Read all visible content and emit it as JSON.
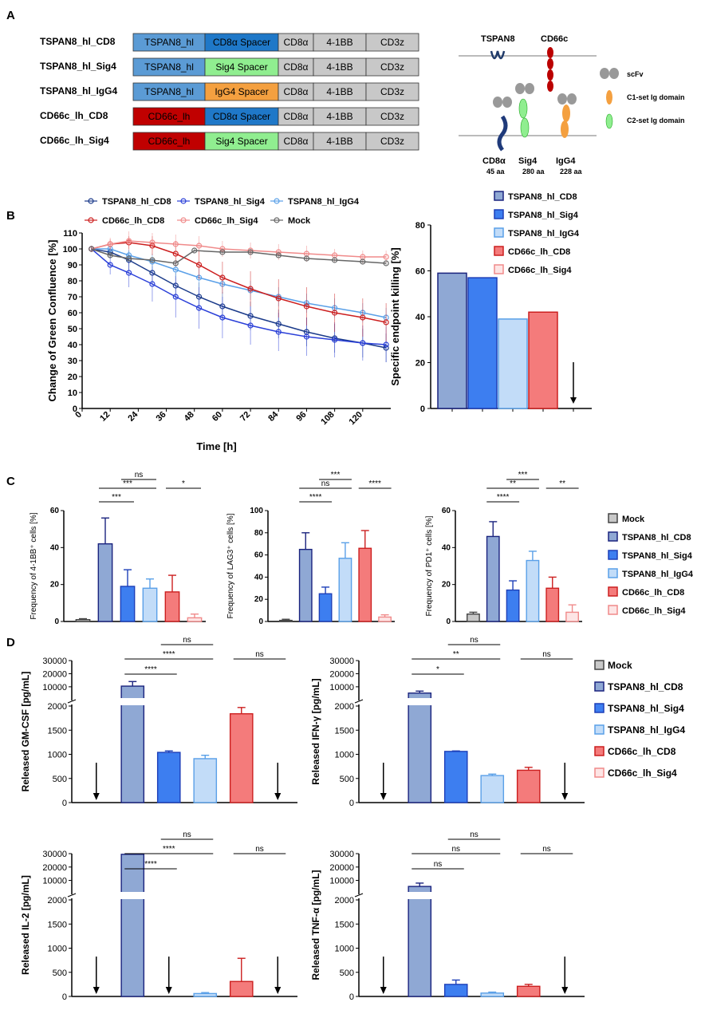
{
  "panels": {
    "A": "A",
    "B": "B",
    "C": "C",
    "D": "D"
  },
  "colors": {
    "mock": "#c8c8c8",
    "tspan8_cd8": "#8fa8d4",
    "tspan8_sig4": "#3d7ef0",
    "tspan8_igg4": "#c2dcf8",
    "cd66c_cd8": "#f47b7b",
    "cd66c_sig4": "#fde5e5",
    "edge_tspan8_cd8": "#1a237e",
    "edge_tspan8_sig4": "#1d3fb8",
    "edge_tspan8_igg4": "#5aa0e8",
    "edge_cd66c_cd8": "#cc1f1f",
    "edge_cd66c_sig4": "#f08a8a",
    "seg_tspan8": "#5b9bd5",
    "seg_cd66c": "#c00000",
    "seg_cd8a_spacer": "#1f78c8",
    "seg_sig4_spacer": "#90ee90",
    "seg_igg4_spacer": "#f4a040",
    "seg_gray": "#c8c8c8"
  },
  "constructs": [
    {
      "name": "TSPAN8_hl_CD8",
      "segments": [
        {
          "label": "TSPAN8_hl",
          "color": "#5b9bd5"
        },
        {
          "label": "CD8α Spacer",
          "color": "#1f78c8"
        },
        {
          "label": "CD8α",
          "color": "#c8c8c8"
        },
        {
          "label": "4-1BB",
          "color": "#c8c8c8"
        },
        {
          "label": "CD3z",
          "color": "#c8c8c8"
        }
      ]
    },
    {
      "name": "TSPAN8_hl_Sig4",
      "segments": [
        {
          "label": "TSPAN8_hl",
          "color": "#5b9bd5"
        },
        {
          "label": "Sig4 Spacer",
          "color": "#90ee90"
        },
        {
          "label": "CD8α",
          "color": "#c8c8c8"
        },
        {
          "label": "4-1BB",
          "color": "#c8c8c8"
        },
        {
          "label": "CD3z",
          "color": "#c8c8c8"
        }
      ]
    },
    {
      "name": "TSPAN8_hl_IgG4",
      "segments": [
        {
          "label": "TSPAN8_hl",
          "color": "#5b9bd5"
        },
        {
          "label": "IgG4 Spacer",
          "color": "#f4a040"
        },
        {
          "label": "CD8α",
          "color": "#c8c8c8"
        },
        {
          "label": "4-1BB",
          "color": "#c8c8c8"
        },
        {
          "label": "CD3z",
          "color": "#c8c8c8"
        }
      ]
    },
    {
      "name": "CD66c_lh_CD8",
      "segments": [
        {
          "label": "CD66c_lh",
          "color": "#c00000"
        },
        {
          "label": "CD8α Spacer",
          "color": "#1f78c8"
        },
        {
          "label": "CD8α",
          "color": "#c8c8c8"
        },
        {
          "label": "4-1BB",
          "color": "#c8c8c8"
        },
        {
          "label": "CD3z",
          "color": "#c8c8c8"
        }
      ]
    },
    {
      "name": "CD66c_lh_Sig4",
      "segments": [
        {
          "label": "CD66c_lh",
          "color": "#c00000"
        },
        {
          "label": "Sig4 Spacer",
          "color": "#90ee90"
        },
        {
          "label": "CD8α",
          "color": "#c8c8c8"
        },
        {
          "label": "4-1BB",
          "color": "#c8c8c8"
        },
        {
          "label": "CD3z",
          "color": "#c8c8c8"
        }
      ]
    }
  ],
  "schematic": {
    "tspan8": "TSPAN8",
    "cd66c": "CD66c",
    "legend": [
      "scFv",
      "C1-set Ig domain",
      "C2-set Ig domain"
    ],
    "spacers": [
      {
        "name": "CD8α",
        "len": "45 aa"
      },
      {
        "name": "Sig4",
        "len": "280 aa"
      },
      {
        "name": "IgG4",
        "len": "228 aa"
      }
    ]
  },
  "chart_data": [
    {
      "id": "B-time-course",
      "type": "line",
      "xlabel": "Time [h]",
      "ylabel": "Change of Green Confluence [%]",
      "xlim": [
        0,
        132
      ],
      "ylim": [
        0,
        110
      ],
      "xticks": [
        0,
        12,
        24,
        36,
        48,
        60,
        72,
        84,
        96,
        108,
        120
      ],
      "yticks": [
        0,
        10,
        20,
        30,
        40,
        50,
        60,
        70,
        80,
        90,
        100,
        110
      ],
      "legend": [
        "TSPAN8_hl_CD8",
        "TSPAN8_hl_Sig4",
        "TSPAN8_hl_IgG4",
        "CD66c_lh_CD8",
        "CD66c_lh_Sig4",
        "Mock"
      ],
      "series": [
        {
          "name": "TSPAN8_hl_CD8",
          "x": [
            4,
            12,
            20,
            30,
            40,
            50,
            60,
            72,
            84,
            96,
            108,
            120,
            130
          ],
          "y": [
            100,
            98,
            93,
            85,
            77,
            70,
            64,
            58,
            53,
            48,
            44,
            41,
            38
          ],
          "err": [
            2,
            4,
            6,
            7,
            8,
            9,
            9,
            9,
            9,
            9,
            9,
            9,
            9
          ]
        },
        {
          "name": "TSPAN8_hl_Sig4",
          "x": [
            4,
            12,
            20,
            30,
            40,
            50,
            60,
            72,
            84,
            96,
            108,
            120,
            130
          ],
          "y": [
            100,
            90,
            85,
            78,
            70,
            63,
            57,
            52,
            48,
            45,
            43,
            41,
            40
          ],
          "err": [
            2,
            6,
            9,
            11,
            13,
            13,
            13,
            12,
            12,
            12,
            11,
            11,
            11
          ]
        },
        {
          "name": "TSPAN8_hl_IgG4",
          "x": [
            4,
            12,
            20,
            30,
            40,
            50,
            60,
            72,
            84,
            96,
            108,
            120,
            130
          ],
          "y": [
            100,
            100,
            96,
            92,
            87,
            82,
            78,
            74,
            70,
            66,
            63,
            60,
            57
          ],
          "err": [
            2,
            3,
            4,
            5,
            5,
            6,
            6,
            6,
            6,
            6,
            6,
            6,
            6
          ]
        },
        {
          "name": "CD66c_lh_CD8",
          "x": [
            4,
            12,
            20,
            30,
            40,
            50,
            60,
            72,
            84,
            96,
            108,
            120,
            130
          ],
          "y": [
            100,
            103,
            104,
            102,
            97,
            90,
            82,
            75,
            69,
            64,
            60,
            57,
            54
          ],
          "err": [
            2,
            3,
            4,
            6,
            8,
            9,
            10,
            11,
            12,
            12,
            12,
            12,
            12
          ]
        },
        {
          "name": "CD66c_lh_Sig4",
          "x": [
            4,
            12,
            20,
            30,
            40,
            50,
            60,
            72,
            84,
            96,
            108,
            120,
            130
          ],
          "y": [
            100,
            103,
            105,
            104,
            103,
            102,
            100,
            99,
            98,
            97,
            96,
            95,
            95
          ],
          "err": [
            2,
            4,
            6,
            6,
            6,
            6,
            5,
            5,
            5,
            5,
            4,
            4,
            4
          ]
        },
        {
          "name": "Mock",
          "x": [
            4,
            12,
            20,
            30,
            40,
            48,
            60,
            72,
            84,
            96,
            108,
            120,
            130
          ],
          "y": [
            100,
            96,
            94,
            93,
            91,
            99,
            98,
            98,
            96,
            94,
            93,
            92,
            91
          ],
          "err": [
            1,
            1,
            1,
            1,
            1,
            1,
            1,
            1,
            1,
            1,
            1,
            1,
            1
          ]
        }
      ]
    },
    {
      "id": "B-endpoint",
      "type": "bar",
      "ylabel": "Specific endpoint killing [%]",
      "ylim": [
        0,
        80
      ],
      "yticks": [
        0,
        20,
        40,
        60,
        80
      ],
      "categories": [
        "TSPAN8_hl_CD8",
        "TSPAN8_hl_Sig4",
        "TSPAN8_hl_IgG4",
        "CD66c_lh_CD8",
        "CD66c_lh_Sig4"
      ],
      "values": [
        59,
        57,
        39,
        42,
        null
      ],
      "legend": [
        "TSPAN8_hl_CD8",
        "TSPAN8_hl_Sig4",
        "TSPAN8_hl_IgG4",
        "CD66c_lh_CD8",
        "CD66c_lh_Sig4"
      ]
    },
    {
      "id": "C-41BB",
      "type": "bar",
      "ylabel": "Frequency of 4-1BB⁺ cells [%]",
      "ylim": [
        0,
        60
      ],
      "yticks": [
        0,
        20,
        40,
        60
      ],
      "categories": [
        "Mock",
        "TSPAN8_hl_CD8",
        "TSPAN8_hl_Sig4",
        "TSPAN8_hl_IgG4",
        "CD66c_lh_CD8",
        "CD66c_lh_Sig4"
      ],
      "values": [
        1,
        42,
        19,
        18,
        16,
        2
      ],
      "errors": [
        0.5,
        14,
        9,
        5,
        9,
        2
      ],
      "significance": [
        {
          "a": 1,
          "b": 2,
          "label": "***"
        },
        {
          "a": 1,
          "b": 3,
          "label": "***"
        },
        {
          "a": 2,
          "b": 3,
          "label": "ns"
        },
        {
          "a": 4,
          "b": 5,
          "label": "*"
        }
      ]
    },
    {
      "id": "C-LAG3",
      "type": "bar",
      "ylabel": "Frequency of LAG3⁺ cells [%]",
      "ylim": [
        0,
        100
      ],
      "yticks": [
        0,
        20,
        40,
        60,
        80,
        100
      ],
      "categories": [
        "Mock",
        "TSPAN8_hl_CD8",
        "TSPAN8_hl_Sig4",
        "TSPAN8_hl_IgG4",
        "CD66c_lh_CD8",
        "CD66c_lh_Sig4"
      ],
      "values": [
        1,
        65,
        25,
        57,
        66,
        4
      ],
      "errors": [
        1,
        15,
        6,
        14,
        16,
        2
      ],
      "significance": [
        {
          "a": 1,
          "b": 2,
          "label": "****"
        },
        {
          "a": 1,
          "b": 3,
          "label": "ns"
        },
        {
          "a": 2,
          "b": 3,
          "label": "***"
        },
        {
          "a": 4,
          "b": 5,
          "label": "****"
        }
      ]
    },
    {
      "id": "C-PD1",
      "type": "bar",
      "ylabel": "Frequency of PD1⁺ cells [%]",
      "ylim": [
        0,
        60
      ],
      "yticks": [
        0,
        20,
        40,
        60
      ],
      "categories": [
        "Mock",
        "TSPAN8_hl_CD8",
        "TSPAN8_hl_Sig4",
        "TSPAN8_hl_IgG4",
        "CD66c_lh_CD8",
        "CD66c_lh_Sig4"
      ],
      "values": [
        4,
        46,
        17,
        33,
        18,
        5
      ],
      "errors": [
        1,
        8,
        5,
        5,
        6,
        4
      ],
      "significance": [
        {
          "a": 1,
          "b": 2,
          "label": "****"
        },
        {
          "a": 1,
          "b": 3,
          "label": "**"
        },
        {
          "a": 2,
          "b": 3,
          "label": "***"
        },
        {
          "a": 4,
          "b": 5,
          "label": "**"
        }
      ]
    },
    {
      "id": "D-GM-CSF",
      "type": "bar",
      "ylabel": "Released GM-CSF [pg/mL]",
      "lower_ylim": [
        0,
        2000
      ],
      "lower_yticks": [
        0,
        500,
        1000,
        1500,
        2000
      ],
      "upper_ylim": [
        2000,
        30000
      ],
      "upper_yticks": [
        10000,
        20000,
        30000
      ],
      "categories": [
        "Mock",
        "TSPAN8_hl_CD8",
        "TSPAN8_hl_Sig4",
        "TSPAN8_hl_IgG4",
        "CD66c_lh_CD8",
        "CD66c_lh_Sig4"
      ],
      "values": [
        null,
        10500,
        1040,
        910,
        1840,
        null
      ],
      "errors": [
        0,
        3500,
        30,
        70,
        130,
        0
      ],
      "significance": [
        {
          "a": 1,
          "b": 2,
          "label": "****"
        },
        {
          "a": 1,
          "b": 3,
          "label": "****"
        },
        {
          "a": 2,
          "b": 3,
          "label": "ns"
        },
        {
          "a": 4,
          "b": 5,
          "label": "ns"
        }
      ]
    },
    {
      "id": "D-IFN",
      "type": "bar",
      "ylabel": "Released IFN-γ [pg/mL]",
      "lower_ylim": [
        0,
        2000
      ],
      "lower_yticks": [
        0,
        500,
        1000,
        1500,
        2000
      ],
      "upper_ylim": [
        2000,
        30000
      ],
      "upper_yticks": [
        10000,
        20000,
        30000
      ],
      "categories": [
        "Mock",
        "TSPAN8_hl_CD8",
        "TSPAN8_hl_Sig4",
        "TSPAN8_hl_IgG4",
        "CD66c_lh_CD8",
        "CD66c_lh_Sig4"
      ],
      "values": [
        null,
        5200,
        1060,
        560,
        670,
        null
      ],
      "errors": [
        0,
        1500,
        10,
        30,
        60,
        0
      ],
      "significance": [
        {
          "a": 1,
          "b": 2,
          "label": "*"
        },
        {
          "a": 1,
          "b": 3,
          "label": "**"
        },
        {
          "a": 2,
          "b": 3,
          "label": "ns"
        },
        {
          "a": 4,
          "b": 5,
          "label": "ns"
        }
      ]
    },
    {
      "id": "D-IL2",
      "type": "bar",
      "ylabel": "Released IL-2 [pg/mL]",
      "lower_ylim": [
        0,
        2000
      ],
      "lower_yticks": [
        0,
        500,
        1000,
        1500,
        2000
      ],
      "upper_ylim": [
        2000,
        30000
      ],
      "upper_yticks": [
        10000,
        20000,
        30000
      ],
      "categories": [
        "Mock",
        "TSPAN8_hl_CD8",
        "TSPAN8_hl_Sig4",
        "TSPAN8_hl_IgG4",
        "CD66c_lh_CD8",
        "CD66c_lh_Sig4"
      ],
      "values": [
        null,
        29500,
        null,
        60,
        310,
        null
      ],
      "errors": [
        0,
        0,
        0,
        20,
        480,
        0
      ],
      "significance": [
        {
          "a": 1,
          "b": 2,
          "label": "****"
        },
        {
          "a": 1,
          "b": 3,
          "label": "****"
        },
        {
          "a": 2,
          "b": 3,
          "label": "ns"
        },
        {
          "a": 4,
          "b": 5,
          "label": "ns"
        }
      ]
    },
    {
      "id": "D-TNF",
      "type": "bar",
      "ylabel": "Released TNF-α [pg/mL]",
      "lower_ylim": [
        0,
        2000
      ],
      "lower_yticks": [
        0,
        500,
        1000,
        1500,
        2000
      ],
      "upper_ylim": [
        2000,
        30000
      ],
      "upper_yticks": [
        10000,
        20000,
        30000
      ],
      "categories": [
        "Mock",
        "TSPAN8_hl_CD8",
        "TSPAN8_hl_Sig4",
        "TSPAN8_hl_IgG4",
        "CD66c_lh_CD8",
        "CD66c_lh_Sig4"
      ],
      "values": [
        null,
        5500,
        250,
        70,
        210,
        null
      ],
      "errors": [
        0,
        2500,
        90,
        20,
        40,
        0
      ],
      "significance": [
        {
          "a": 1,
          "b": 2,
          "label": "ns"
        },
        {
          "a": 1,
          "b": 3,
          "label": "ns"
        },
        {
          "a": 2,
          "b": 3,
          "label": "ns"
        },
        {
          "a": 4,
          "b": 5,
          "label": "ns"
        }
      ]
    }
  ],
  "legend_C": [
    "Mock",
    "TSPAN8_hl_CD8",
    "TSPAN8_hl_Sig4",
    "TSPAN8_hl_IgG4",
    "CD66c_lh_CD8",
    "CD66c_lh_Sig4"
  ],
  "legend_D": [
    "Mock",
    "TSPAN8_hl_CD8",
    "TSPAN8_hl_Sig4",
    "TSPAN8_hl_IgG4",
    "CD66c_lh_CD8",
    "CD66c_lh_Sig4"
  ]
}
